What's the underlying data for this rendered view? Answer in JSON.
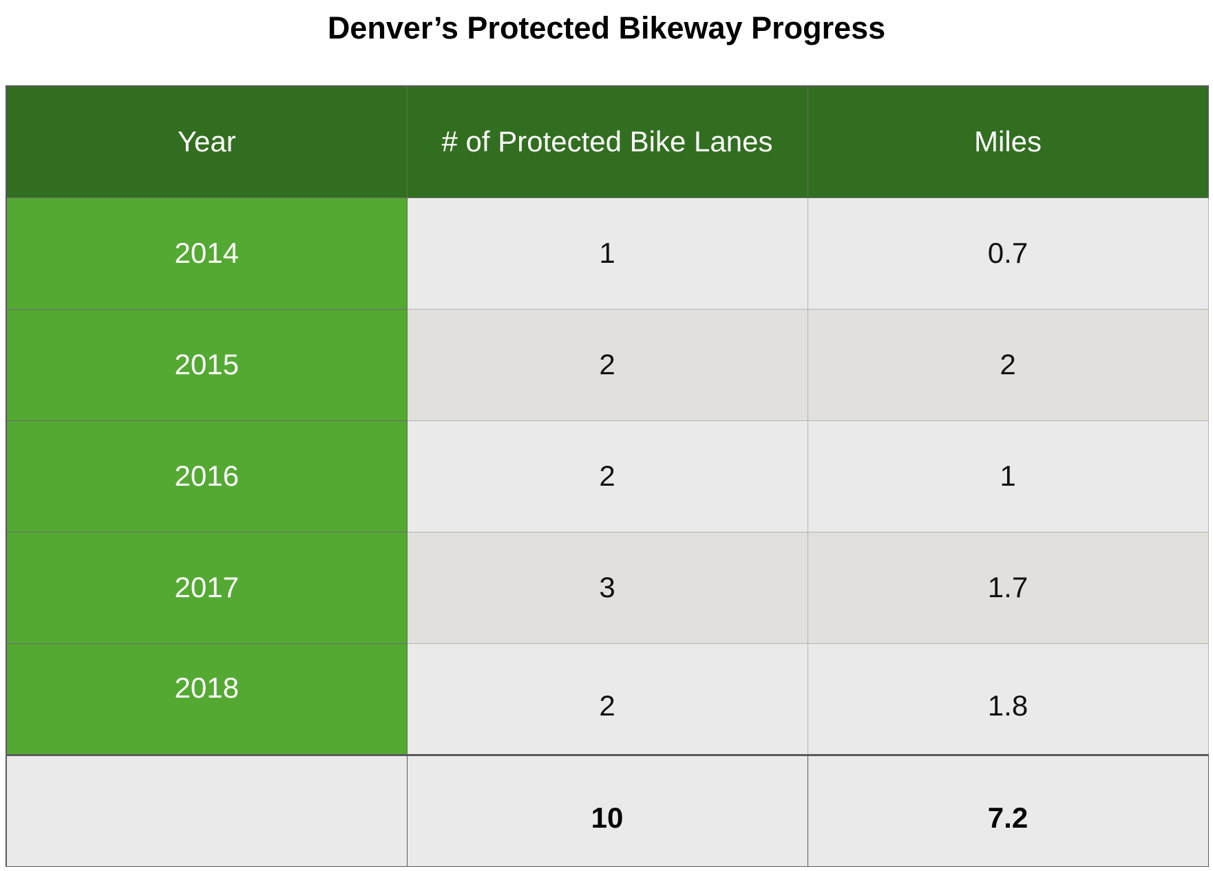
{
  "title": "Denver’s Protected Bikeway Progress",
  "colors": {
    "header_bg": "#326e20",
    "year_col_bg": "#54a932",
    "row_light": "#eaeaea",
    "row_dark": "#e1e0dc"
  },
  "table": {
    "headers": [
      "Year",
      "# of Protected Bike Lanes",
      "Miles"
    ],
    "rows": [
      [
        "2014",
        "1",
        "0.7"
      ],
      [
        "2015",
        "2",
        "2"
      ],
      [
        "2016",
        "2",
        "1"
      ],
      [
        "2017",
        "3",
        "1.7"
      ],
      [
        "2018",
        "2",
        "1.8"
      ]
    ],
    "totals": [
      "",
      "10",
      "7.2"
    ]
  },
  "chart_data": {
    "type": "table",
    "title": "Denver’s Protected Bikeway Progress",
    "columns": [
      "Year",
      "# of Protected Bike Lanes",
      "Miles"
    ],
    "categories": [
      "2014",
      "2015",
      "2016",
      "2017",
      "2018"
    ],
    "series": [
      {
        "name": "# of Protected Bike Lanes",
        "values": [
          1,
          2,
          2,
          3,
          2
        ]
      },
      {
        "name": "Miles",
        "values": [
          0.7,
          2,
          1,
          1.7,
          1.8
        ]
      }
    ],
    "totals": {
      "# of Protected Bike Lanes": 10,
      "Miles": 7.2
    }
  }
}
